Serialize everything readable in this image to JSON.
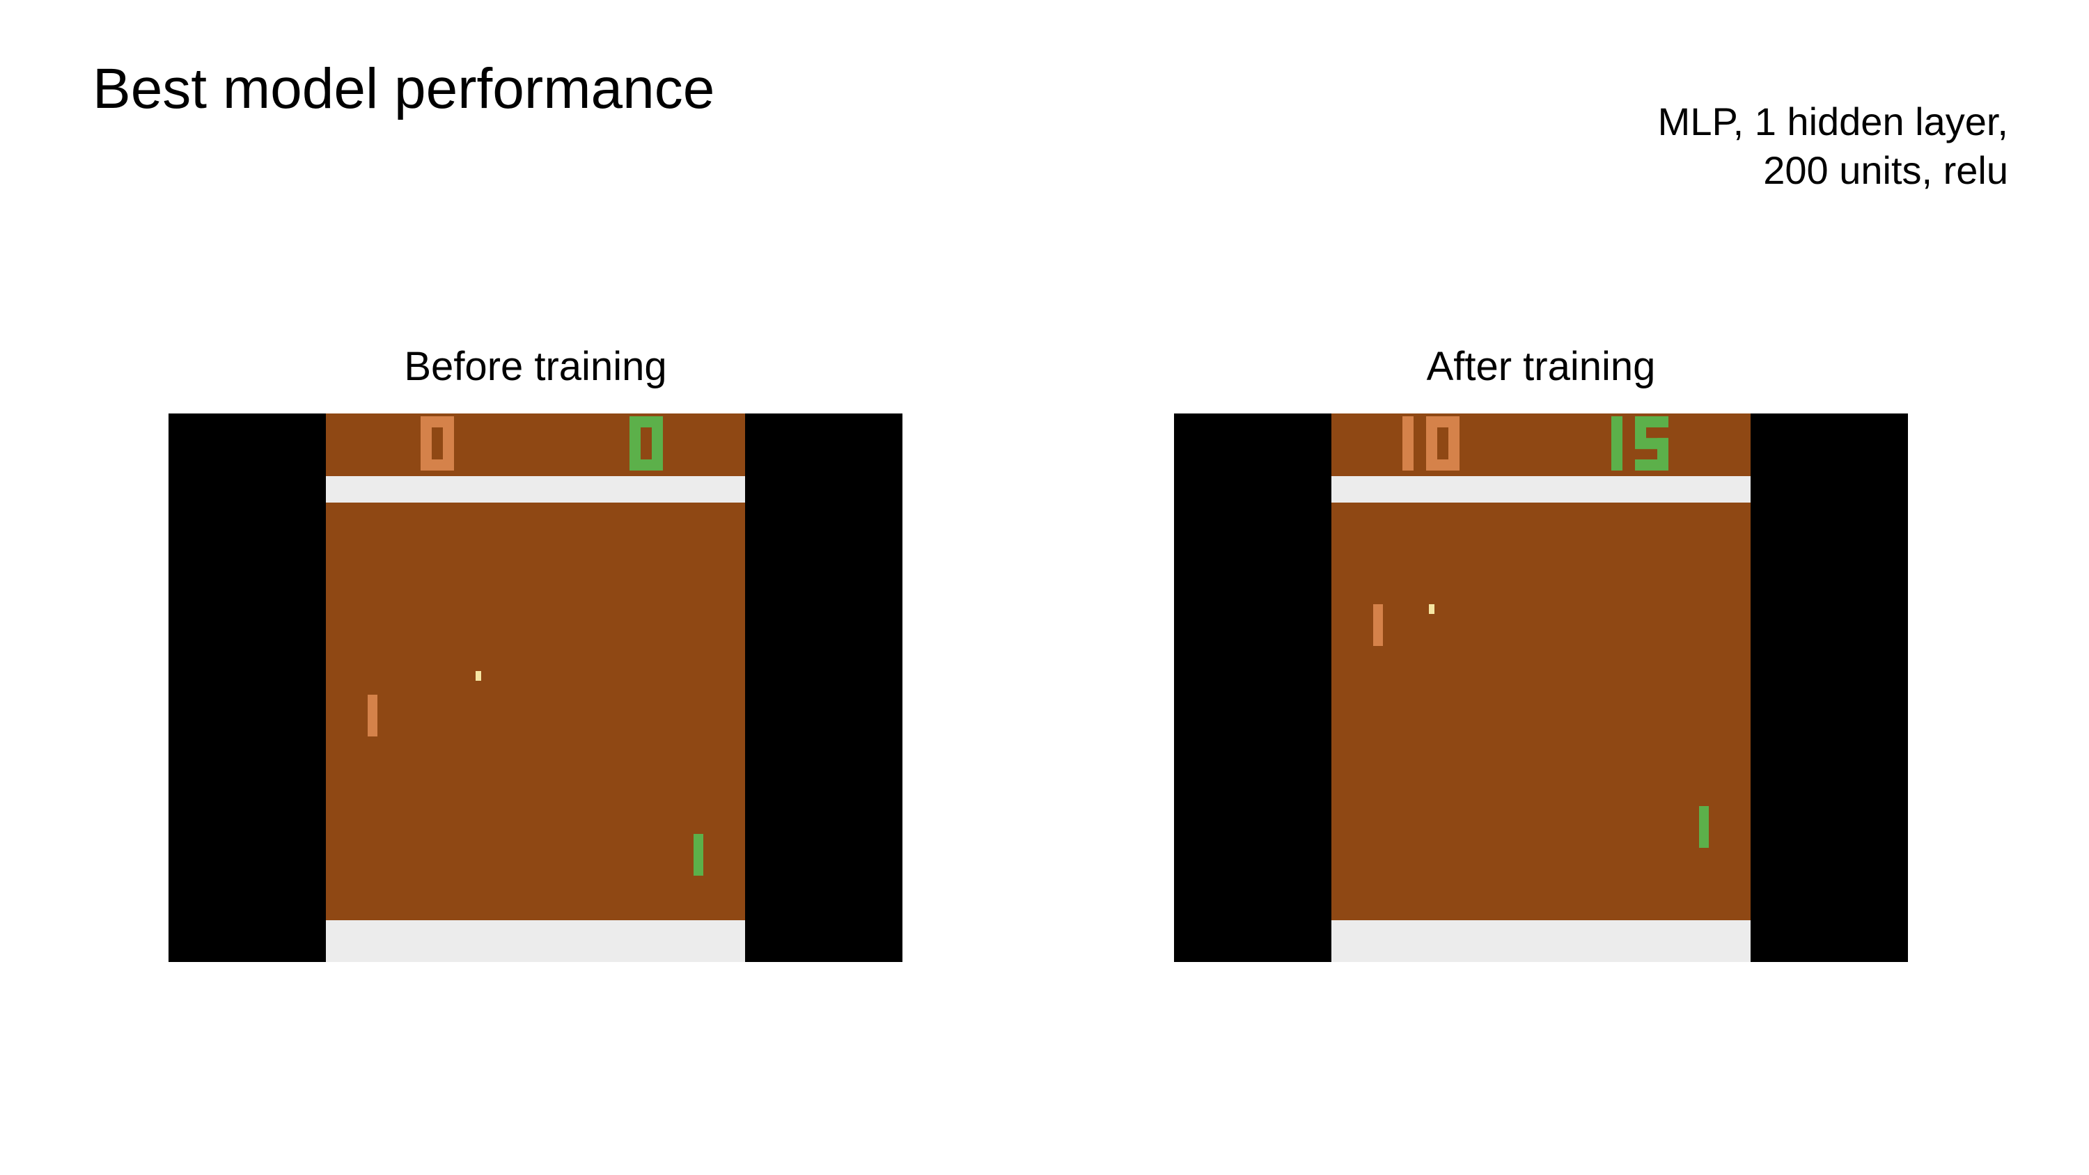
{
  "slide": {
    "title": "Best model performance",
    "model_description": {
      "line1": "MLP, 1 hidden layer,",
      "line2": "200 units, relu"
    }
  },
  "panels": [
    {
      "label": "Before training",
      "score_left": 0,
      "score_right": 0
    },
    {
      "label": "After training",
      "score_left": 10,
      "score_right": 15
    }
  ],
  "colors": {
    "court": "#8f4814",
    "wall": "#ececec",
    "left_player": "#d5824a",
    "right_player": "#5cb04a",
    "ball": "#f5e6a3"
  }
}
